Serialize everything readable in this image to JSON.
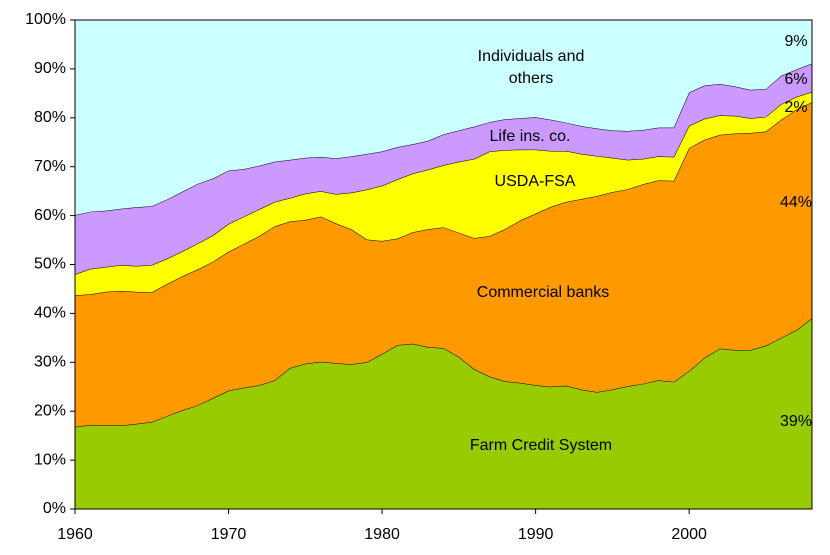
{
  "chart_data": {
    "type": "stacked-area",
    "x": [
      1960,
      1961,
      1962,
      1963,
      1964,
      1965,
      1966,
      1967,
      1968,
      1969,
      1970,
      1971,
      1972,
      1973,
      1974,
      1975,
      1976,
      1977,
      1978,
      1979,
      1980,
      1981,
      1982,
      1983,
      1984,
      1985,
      1986,
      1987,
      1988,
      1989,
      1990,
      1991,
      1992,
      1993,
      1994,
      1995,
      1996,
      1997,
      1998,
      1999,
      2000,
      2001,
      2002,
      2003,
      2004,
      2005,
      2006,
      2007,
      2008
    ],
    "xlim": [
      1960,
      2008
    ],
    "xticks": [
      1960,
      1970,
      1980,
      1990,
      2000
    ],
    "ylim": [
      0,
      100
    ],
    "yticks": [
      {
        "value": 0,
        "label": "0%"
      },
      {
        "value": 10,
        "label": "10%"
      },
      {
        "value": 20,
        "label": "20%"
      },
      {
        "value": 30,
        "label": "30%"
      },
      {
        "value": 40,
        "label": "40%"
      },
      {
        "value": 50,
        "label": "50%"
      },
      {
        "value": 60,
        "label": "60%"
      },
      {
        "value": 70,
        "label": "70%"
      },
      {
        "value": 80,
        "label": "80%"
      },
      {
        "value": 90,
        "label": "90%"
      },
      {
        "value": 100,
        "label": "100%"
      }
    ],
    "grid": false,
    "series": [
      {
        "name": "Farm Credit System",
        "color": "#99cc00",
        "values": [
          16.8,
          17.2,
          17.1,
          17.1,
          17.4,
          17.8,
          19.0,
          20.2,
          21.2,
          22.7,
          24.2,
          24.8,
          25.3,
          26.3,
          28.8,
          29.7,
          30.1,
          29.8,
          29.6,
          30.0,
          31.7,
          33.5,
          33.8,
          33.1,
          32.9,
          31.1,
          28.6,
          27.1,
          26.1,
          25.8,
          25.3,
          25.0,
          25.2,
          24.4,
          23.9,
          24.4,
          25.1,
          25.6,
          26.3,
          26.0,
          28.2,
          30.9,
          32.8,
          32.5,
          32.5,
          33.4,
          35.0,
          36.6,
          39.0
        ],
        "value_labels": [
          null,
          null,
          null,
          null,
          null,
          null,
          null,
          null,
          null,
          null,
          null,
          null,
          null,
          null,
          null,
          null,
          null,
          null,
          null,
          null,
          null,
          null,
          null,
          null,
          null,
          null,
          null,
          null,
          null,
          null,
          null,
          null,
          null,
          null,
          null,
          null,
          null,
          null,
          null,
          null,
          null,
          null,
          null,
          null,
          null,
          null,
          null,
          null,
          "39%"
        ]
      },
      {
        "name": "Commercial banks",
        "color": "#ff9900",
        "values": [
          26.9,
          26.7,
          27.3,
          27.5,
          27.0,
          26.5,
          27.0,
          27.4,
          27.8,
          27.9,
          28.4,
          29.4,
          30.5,
          31.5,
          30.0,
          29.4,
          29.7,
          28.6,
          27.6,
          25.1,
          23.1,
          21.8,
          22.8,
          24.1,
          24.7,
          25.4,
          26.8,
          28.7,
          31.1,
          33.2,
          35.1,
          36.8,
          37.6,
          39.0,
          40.1,
          40.4,
          40.3,
          40.8,
          40.9,
          41.1,
          45.6,
          44.6,
          43.7,
          44.3,
          44.4,
          43.8,
          44.6,
          45.1,
          44.2
        ],
        "value_labels": [
          null,
          null,
          null,
          null,
          null,
          null,
          null,
          null,
          null,
          null,
          null,
          null,
          null,
          null,
          null,
          null,
          null,
          null,
          null,
          null,
          null,
          null,
          null,
          null,
          null,
          null,
          null,
          null,
          null,
          null,
          null,
          null,
          null,
          null,
          null,
          null,
          null,
          null,
          null,
          null,
          null,
          null,
          null,
          null,
          null,
          null,
          null,
          null,
          "44%"
        ]
      },
      {
        "name": "USDA-FSA",
        "color": "#ffff00",
        "values": [
          4.3,
          5.2,
          5.1,
          5.3,
          5.3,
          5.6,
          5.2,
          5.1,
          5.3,
          5.4,
          5.7,
          5.6,
          5.5,
          5.0,
          4.8,
          5.4,
          5.2,
          6.0,
          7.5,
          10.2,
          11.3,
          12.1,
          12.0,
          12.2,
          12.7,
          14.5,
          16.2,
          17.3,
          16.2,
          14.5,
          13.1,
          11.4,
          10.4,
          9.2,
          8.2,
          7.0,
          6.0,
          5.2,
          4.9,
          4.9,
          4.6,
          4.3,
          4.0,
          3.6,
          3.0,
          3.0,
          3.2,
          2.6,
          2.1
        ],
        "value_labels": [
          null,
          null,
          null,
          null,
          null,
          null,
          null,
          null,
          null,
          null,
          null,
          null,
          null,
          null,
          null,
          null,
          null,
          null,
          null,
          null,
          null,
          null,
          null,
          null,
          null,
          null,
          null,
          null,
          null,
          null,
          null,
          null,
          null,
          null,
          null,
          null,
          null,
          null,
          null,
          null,
          null,
          null,
          null,
          null,
          null,
          null,
          null,
          null,
          "2%"
        ]
      },
      {
        "name": "Life ins. co.",
        "color": "#cc99ff",
        "values": [
          12.1,
          11.7,
          11.5,
          11.5,
          12.0,
          12.0,
          12.1,
          12.2,
          12.2,
          11.6,
          10.9,
          9.7,
          8.9,
          8.2,
          7.8,
          7.3,
          7.0,
          7.3,
          7.4,
          7.3,
          7.0,
          6.6,
          6.0,
          5.9,
          6.3,
          6.4,
          6.6,
          6.0,
          6.3,
          6.4,
          6.6,
          6.4,
          5.8,
          5.7,
          5.6,
          5.6,
          5.9,
          5.9,
          5.9,
          6.0,
          6.8,
          6.8,
          6.4,
          6.0,
          5.8,
          5.7,
          5.8,
          5.6,
          5.8
        ],
        "value_labels": [
          null,
          null,
          null,
          null,
          null,
          null,
          null,
          null,
          null,
          null,
          null,
          null,
          null,
          null,
          null,
          null,
          null,
          null,
          null,
          null,
          null,
          null,
          null,
          null,
          null,
          null,
          null,
          null,
          null,
          null,
          null,
          null,
          null,
          null,
          null,
          null,
          null,
          null,
          null,
          null,
          null,
          null,
          null,
          null,
          null,
          null,
          null,
          null,
          "6%"
        ]
      },
      {
        "name": "Individuals and others",
        "color": "#ccffff",
        "values": [
          39.9,
          39.2,
          39.0,
          38.6,
          38.3,
          38.1,
          36.7,
          35.1,
          33.5,
          32.4,
          30.8,
          30.5,
          29.8,
          29.0,
          28.6,
          28.2,
          28.0,
          28.3,
          27.9,
          27.4,
          26.9,
          26.0,
          25.4,
          24.7,
          23.4,
          22.6,
          21.8,
          20.9,
          20.3,
          20.1,
          19.9,
          20.4,
          21.0,
          21.7,
          22.2,
          22.6,
          22.7,
          22.5,
          22.0,
          22.0,
          14.8,
          13.4,
          13.1,
          13.6,
          14.3,
          14.1,
          11.4,
          10.1,
          8.9
        ],
        "value_labels": [
          null,
          null,
          null,
          null,
          null,
          null,
          null,
          null,
          null,
          null,
          null,
          null,
          null,
          null,
          null,
          null,
          null,
          null,
          null,
          null,
          null,
          null,
          null,
          null,
          null,
          null,
          null,
          null,
          null,
          null,
          null,
          null,
          null,
          null,
          null,
          null,
          null,
          null,
          null,
          null,
          null,
          null,
          null,
          null,
          null,
          null,
          null,
          null,
          "9%"
        ]
      }
    ]
  }
}
